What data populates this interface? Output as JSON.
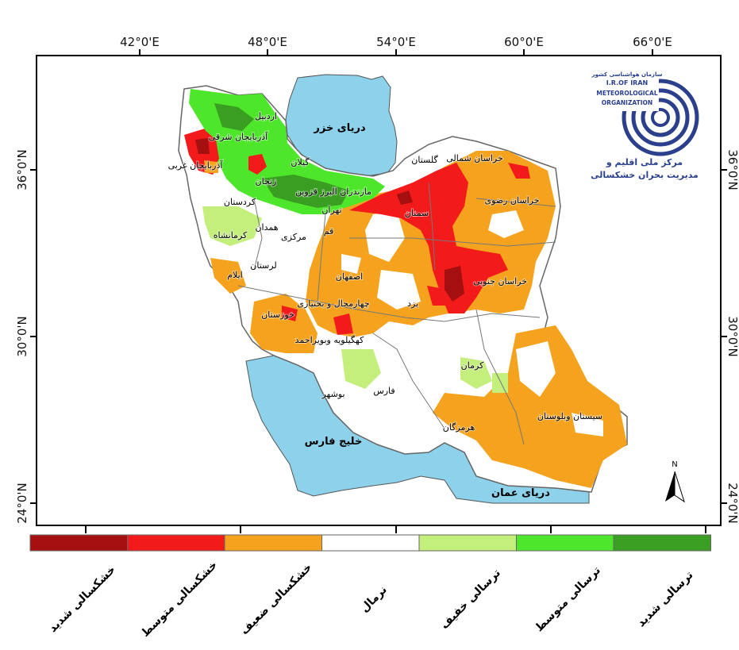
{
  "axes": {
    "top_longitudes": [
      "42°0'E",
      "48°0'E",
      "54°0'E",
      "60°0'E",
      "66°0'E"
    ],
    "left_latitudes": [
      "36°0'N",
      "30°0'N",
      "24°0'N"
    ],
    "right_latitudes": [
      "36°0'N",
      "30°0'N",
      "24°0'N"
    ]
  },
  "seas": {
    "caspian": "دریای خزر",
    "persian_gulf": "خلیج فارس",
    "oman_sea": "دریای عمان"
  },
  "provinces": {
    "ardabil": "اردبیل",
    "east_azerbaijan": "آذربایجان شرقی",
    "west_azerbaijan": "آذربایجان غربی",
    "gilan": "گیلان",
    "zanjan": "زنجان",
    "mazandaran_alborz_qazvin": "مازندران البرز قزوین",
    "kurdistan": "کردستان",
    "tehran": "تهران",
    "hamadan": "همدان",
    "kermanshah": "کرمانشاه",
    "qom": "قم",
    "markazi": "مرکزی",
    "lorestan": "لرستان",
    "ilam": "ایلام",
    "isfahan": "اصفهان",
    "chaharmahal": "چهارمحال و بختیاری",
    "khuzestan": "خوزستان",
    "kohgiluyeh": "کهگیلویه وبویراحمد",
    "yazd": "یزد",
    "semnan": "سمنان",
    "golestan": "گلستان",
    "north_khorasan": "خراسان شمالی",
    "razavi_khorasan": "خراسان رضوی",
    "south_khorasan": "خراسان جنوبی",
    "kerman": "کرمان",
    "fars": "فارس",
    "bushehr": "بوشهر",
    "hormozgan": "هرمزگان",
    "sistan_baluchestan": "سیستان وبلوستان"
  },
  "logo": {
    "org_fa": "سازمان هواشناسی کشور",
    "line1": "I.R.OF IRAN",
    "line2": "METEOROLOGICAL",
    "line3": "ORGANIZATION",
    "center_fa_1": "مرکز ملی اقلیم و",
    "center_fa_2": "مدیریت بحران خشکسالی"
  },
  "north_arrow": "N",
  "legend": {
    "classes": [
      {
        "label": "خشکسالی شدید",
        "color": "#a50f0f"
      },
      {
        "label": "خشکسالی متوسط",
        "color": "#f21a1a"
      },
      {
        "label": "خشکسالی ضعیف",
        "color": "#f5a31e"
      },
      {
        "label": "نرمال",
        "color": "#ffffff"
      },
      {
        "label": "ترسالی خفیف",
        "color": "#c4ef7c"
      },
      {
        "label": "ترسالی متوسط",
        "color": "#4ee62a"
      },
      {
        "label": "ترسالی شدید",
        "color": "#3a9e23"
      }
    ]
  },
  "colors": {
    "sea": "#8dd1ea",
    "border": "#777777",
    "logo": "#2b3f8c"
  }
}
